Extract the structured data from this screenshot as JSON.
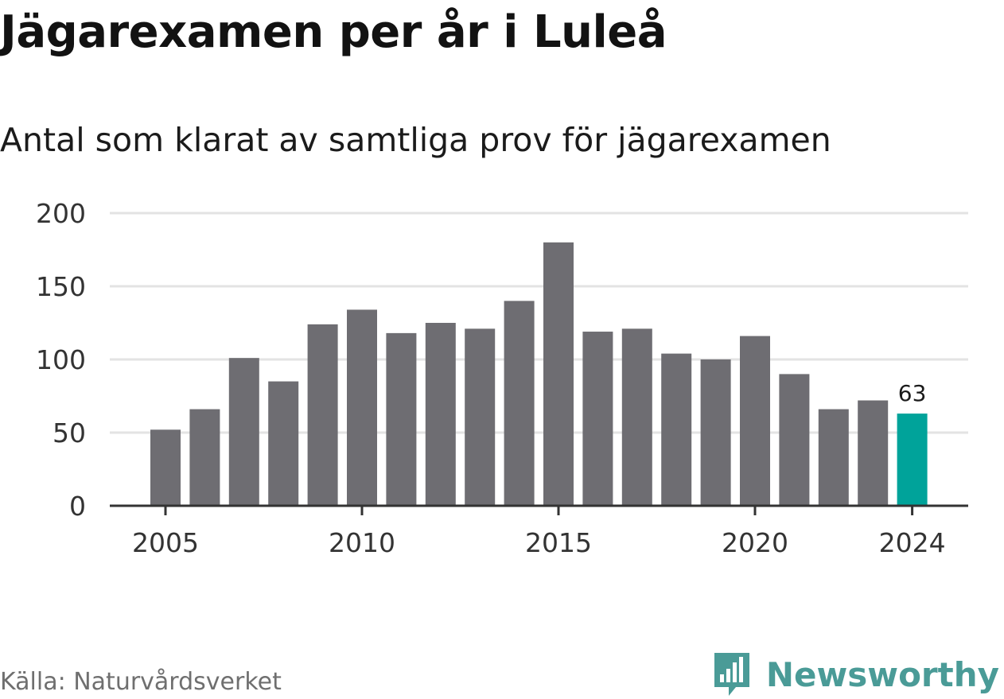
{
  "title": "Jägarexamen per år i Luleå",
  "subtitle": "Antal som klarat av samtliga prov för jägarexamen",
  "source": "Källa: Naturvårdsverket",
  "brand": {
    "name": "Newsworthy",
    "icon": "newsworthy-logo-icon",
    "color": "#4a9b97"
  },
  "colors": {
    "bar": "#6e6d72",
    "highlight": "#00a39a",
    "grid": "#e3e3e3",
    "axis": "#333333"
  },
  "chart_data": {
    "type": "bar",
    "x": [
      2005,
      2006,
      2007,
      2008,
      2009,
      2010,
      2011,
      2012,
      2013,
      2014,
      2015,
      2016,
      2017,
      2018,
      2019,
      2020,
      2021,
      2022,
      2023,
      2024
    ],
    "values": [
      52,
      66,
      101,
      85,
      124,
      134,
      118,
      125,
      121,
      140,
      180,
      119,
      121,
      104,
      100,
      116,
      90,
      66,
      72,
      63
    ],
    "x_ticks": [
      "2005",
      "2010",
      "2015",
      "2020",
      "2024"
    ],
    "y_ticks": [
      "0",
      "50",
      "100",
      "150",
      "200"
    ],
    "ylim": [
      0,
      200
    ],
    "highlight": {
      "x": 2024,
      "label": "63"
    },
    "grid": true,
    "xlabel": "",
    "ylabel": ""
  }
}
